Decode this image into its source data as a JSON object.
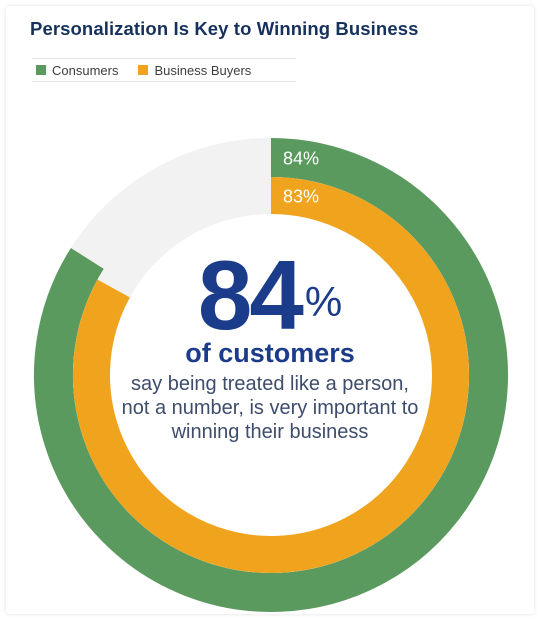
{
  "header": {
    "title": "Personalization Is Key to Winning Business"
  },
  "legend": [
    {
      "label": "Consumers",
      "color": "#5a9a5e"
    },
    {
      "label": "Business Buyers",
      "color": "#f0a41e"
    }
  ],
  "center": {
    "big_number": "84",
    "percent_sign": "%",
    "headline": "of customers",
    "description": "say being treated like a person, not a number, is very important to winning their business"
  },
  "chart_data": {
    "type": "pie",
    "variant": "concentric-donut",
    "title": "Personalization Is Key to Winning Business",
    "series": [
      {
        "name": "Consumers",
        "value": 84,
        "label": "84%",
        "color": "#5a9a5e"
      },
      {
        "name": "Business Buyers",
        "value": 83,
        "label": "83%",
        "color": "#f0a41e"
      }
    ],
    "max": 100,
    "remainder_color": "#f3f2f2",
    "legend_position": "top-left"
  }
}
